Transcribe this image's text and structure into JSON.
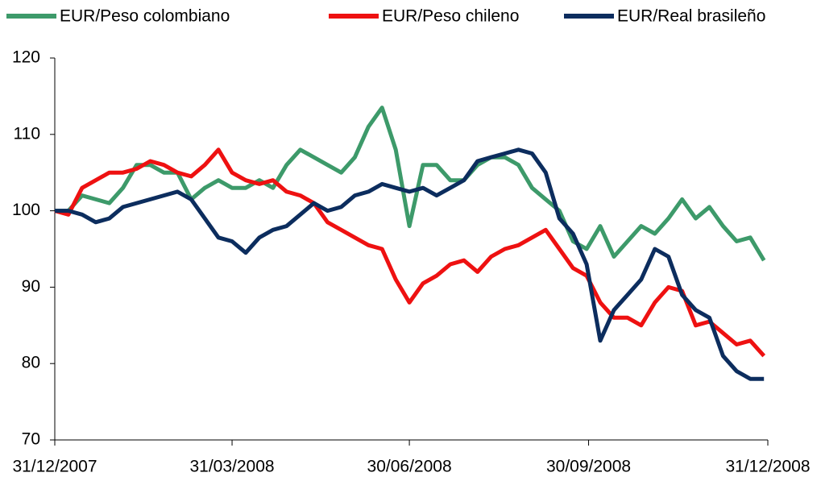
{
  "chart_data": {
    "type": "line",
    "x": [
      "2007-12-31",
      "2008-01-07",
      "2008-01-14",
      "2008-01-21",
      "2008-01-28",
      "2008-02-04",
      "2008-02-11",
      "2008-02-18",
      "2008-02-25",
      "2008-03-03",
      "2008-03-10",
      "2008-03-17",
      "2008-03-24",
      "2008-03-31",
      "2008-04-07",
      "2008-04-14",
      "2008-04-21",
      "2008-04-28",
      "2008-05-05",
      "2008-05-12",
      "2008-05-19",
      "2008-05-26",
      "2008-06-02",
      "2008-06-09",
      "2008-06-16",
      "2008-06-23",
      "2008-06-30",
      "2008-07-07",
      "2008-07-14",
      "2008-07-21",
      "2008-07-28",
      "2008-08-04",
      "2008-08-11",
      "2008-08-18",
      "2008-08-25",
      "2008-09-01",
      "2008-09-08",
      "2008-09-15",
      "2008-09-22",
      "2008-09-29",
      "2008-10-06",
      "2008-10-13",
      "2008-10-20",
      "2008-10-27",
      "2008-11-03",
      "2008-11-10",
      "2008-11-17",
      "2008-11-24",
      "2008-12-01",
      "2008-12-08",
      "2008-12-15",
      "2008-12-22",
      "2008-12-29"
    ],
    "series": [
      {
        "name": "EUR/Peso colombiano",
        "color": "#3d9a6a",
        "values": [
          100,
          100,
          102,
          101.5,
          101,
          103,
          106,
          106,
          105,
          105,
          101.5,
          103,
          104,
          103,
          103,
          104,
          103,
          106,
          108,
          107,
          106,
          105,
          107,
          111,
          113.5,
          108,
          98,
          106,
          106,
          104,
          104,
          106,
          107,
          107,
          106,
          103,
          101.5,
          100,
          96,
          95,
          98,
          94,
          96,
          98,
          97,
          99,
          101.5,
          99,
          100.5,
          98,
          96,
          96.5,
          93.5
        ]
      },
      {
        "name": "EUR/Peso chileno",
        "color": "#ee1111",
        "values": [
          100,
          99.5,
          103,
          104,
          105,
          105,
          105.5,
          106.5,
          106,
          105,
          104.5,
          106,
          108,
          105,
          104,
          103.5,
          104,
          102.5,
          102,
          101,
          98.5,
          97.5,
          96.5,
          95.5,
          95,
          91,
          88,
          90.5,
          91.5,
          93,
          93.5,
          92,
          94,
          95,
          95.5,
          96.5,
          97.5,
          95,
          92.5,
          91.5,
          88,
          86,
          86,
          85,
          88,
          90,
          89.5,
          85,
          85.5,
          84,
          82.5,
          83,
          81
        ]
      },
      {
        "name": "EUR/Real brasileño",
        "color": "#0c2d5e",
        "values": [
          100,
          100,
          99.5,
          98.5,
          99,
          100.5,
          101,
          101.5,
          102,
          102.5,
          101.5,
          99,
          96.5,
          96,
          94.5,
          96.5,
          97.5,
          98,
          99.5,
          101,
          100,
          100.5,
          102,
          102.5,
          103.5,
          103,
          102.5,
          103,
          102,
          103,
          104,
          106.5,
          107,
          107.5,
          108,
          107.5,
          105,
          99,
          97,
          93,
          83,
          87,
          89,
          91,
          95,
          94,
          89,
          87,
          86,
          81,
          79,
          78,
          78
        ]
      }
    ],
    "xlim": [
      "2007-12-31",
      "2008-12-31"
    ],
    "xticks": [
      {
        "value": "2007-12-31",
        "label": "31/12/2007"
      },
      {
        "value": "2008-03-31",
        "label": "31/03/2008"
      },
      {
        "value": "2008-06-30",
        "label": "30/06/2008"
      },
      {
        "value": "2008-09-30",
        "label": "30/09/2008"
      },
      {
        "value": "2008-12-31",
        "label": "31/12/2008"
      }
    ],
    "ylim": [
      70,
      120
    ],
    "yticks": [
      70,
      80,
      90,
      100,
      110,
      120
    ]
  }
}
